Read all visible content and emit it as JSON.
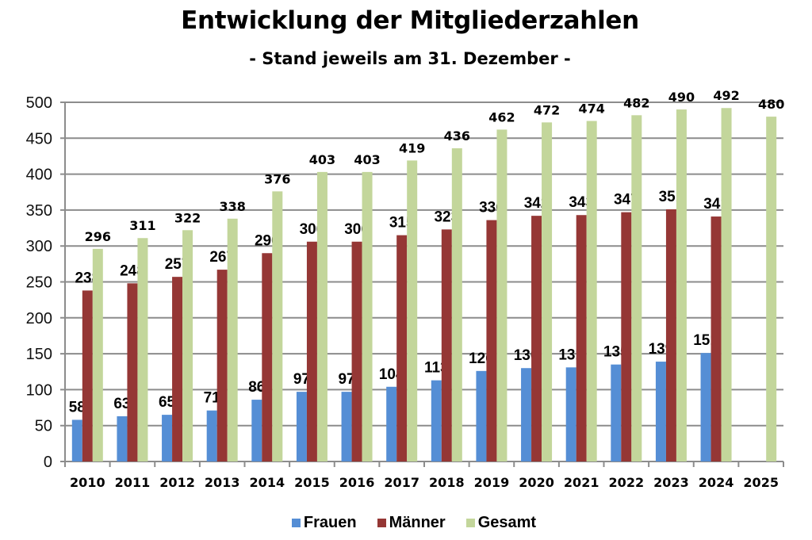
{
  "chart_data": {
    "type": "bar",
    "title": "Entwicklung der Mitgliederzahlen",
    "subtitle": "- Stand jeweils am 31. Dezember -",
    "xlabel": "",
    "ylabel": "",
    "ylim": [
      0,
      500
    ],
    "yticks": [
      0,
      50,
      100,
      150,
      200,
      250,
      300,
      350,
      400,
      450,
      500
    ],
    "grid": true,
    "legend_position": "bottom",
    "categories": [
      "2010",
      "2011",
      "2012",
      "2013",
      "2014",
      "2015",
      "2016",
      "2017",
      "2018",
      "2019",
      "2020",
      "2021",
      "2022",
      "2023",
      "2024",
      "2025"
    ],
    "series": [
      {
        "name": "Frauen",
        "color": "#558ED5",
        "values": [
          58,
          63,
          65,
          71,
          86,
          97,
          97,
          104,
          113,
          126,
          130,
          131,
          135,
          139,
          151,
          null
        ]
      },
      {
        "name": "Männer",
        "color": "#953735",
        "values": [
          238,
          248,
          257,
          267,
          290,
          306,
          306,
          315,
          323,
          336,
          342,
          343,
          347,
          351,
          341,
          null
        ]
      },
      {
        "name": "Gesamt",
        "color": "#C3D69B",
        "values": [
          296,
          311,
          322,
          338,
          376,
          403,
          403,
          419,
          436,
          462,
          472,
          474,
          482,
          490,
          492,
          480
        ]
      }
    ]
  }
}
